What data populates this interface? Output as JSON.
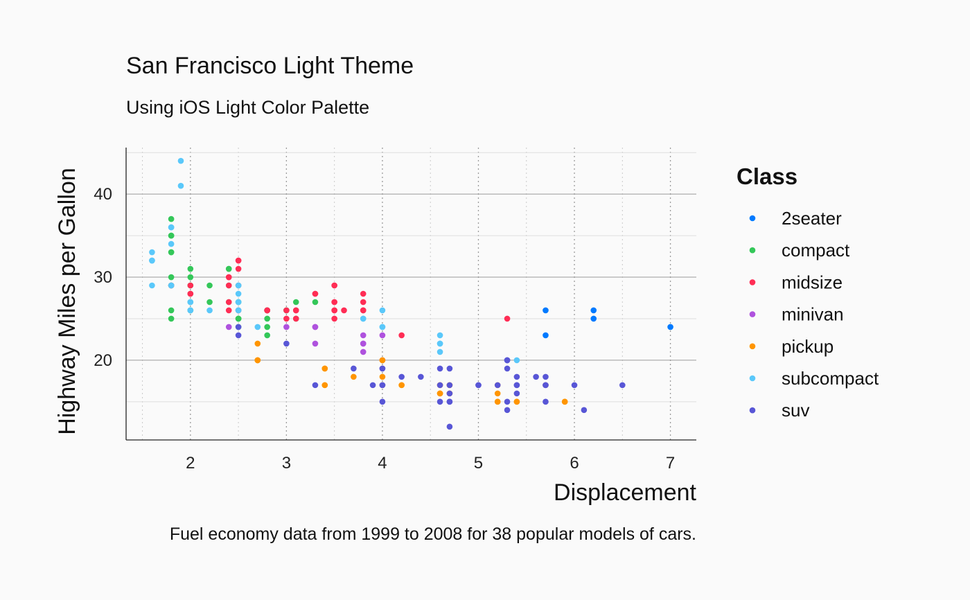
{
  "chart_data": {
    "type": "scatter",
    "title": "San Francisco Light Theme",
    "subtitle": "Using iOS Light Color Palette",
    "caption": "Fuel economy data from 1999 to 2008 for 38 popular models of cars.",
    "xlabel": "Displacement",
    "ylabel": "Highway Miles per Gallon",
    "xlim": [
      1.33,
      7.27
    ],
    "ylim": [
      10.4,
      45.6
    ],
    "x_ticks": [
      2,
      3,
      4,
      5,
      6,
      7
    ],
    "y_ticks": [
      20,
      30,
      40
    ],
    "grid": true,
    "legend": {
      "title": "Class",
      "position": "right"
    },
    "series": [
      {
        "name": "2seater",
        "color": "#007aff",
        "points": [
          [
            5.7,
            26
          ],
          [
            5.7,
            23
          ],
          [
            6.2,
            26
          ],
          [
            6.2,
            25
          ],
          [
            7.0,
            24
          ]
        ]
      },
      {
        "name": "compact",
        "color": "#34c759",
        "points": [
          [
            1.8,
            29
          ],
          [
            1.8,
            29
          ],
          [
            2.0,
            31
          ],
          [
            2.0,
            30
          ],
          [
            2.8,
            26
          ],
          [
            2.8,
            26
          ],
          [
            3.1,
            27
          ],
          [
            1.8,
            26
          ],
          [
            1.8,
            25
          ],
          [
            2.0,
            28
          ],
          [
            2.0,
            29
          ],
          [
            2.8,
            25
          ],
          [
            2.8,
            24
          ],
          [
            3.1,
            25
          ],
          [
            1.8,
            33
          ],
          [
            1.8,
            35
          ],
          [
            1.8,
            37
          ],
          [
            1.8,
            35
          ],
          [
            1.8,
            29
          ],
          [
            2.2,
            27
          ],
          [
            2.2,
            29
          ],
          [
            2.4,
            31
          ],
          [
            2.4,
            31
          ],
          [
            3.0,
            26
          ],
          [
            3.0,
            26
          ],
          [
            3.3,
            27
          ],
          [
            2.0,
            29
          ],
          [
            2.0,
            26
          ],
          [
            2.5,
            27
          ],
          [
            2.5,
            25
          ],
          [
            2.5,
            25
          ],
          [
            2.5,
            29
          ],
          [
            2.8,
            23
          ],
          [
            2.5,
            27
          ],
          [
            2.5,
            24
          ],
          [
            2.4,
            29
          ],
          [
            2.4,
            27
          ],
          [
            2.8,
            26
          ],
          [
            2.0,
            27
          ],
          [
            2.0,
            26
          ],
          [
            1.8,
            30
          ],
          [
            1.8,
            33
          ],
          [
            2.5,
            25
          ]
        ]
      },
      {
        "name": "midsize",
        "color": "#ff2d55",
        "points": [
          [
            2.8,
            26
          ],
          [
            3.1,
            26
          ],
          [
            4.2,
            23
          ],
          [
            2.4,
            27
          ],
          [
            2.4,
            30
          ],
          [
            3.1,
            26
          ],
          [
            3.5,
            29
          ],
          [
            3.6,
            26
          ],
          [
            2.5,
            32
          ],
          [
            2.5,
            31
          ],
          [
            3.3,
            28
          ],
          [
            3.5,
            29
          ],
          [
            3.5,
            27
          ],
          [
            3.5,
            26
          ],
          [
            3.8,
            28
          ],
          [
            3.8,
            27
          ],
          [
            3.8,
            26
          ],
          [
            5.3,
            25
          ],
          [
            2.4,
            30
          ],
          [
            2.4,
            29
          ],
          [
            2.5,
            32
          ],
          [
            2.5,
            29
          ],
          [
            3.5,
            26
          ],
          [
            3.5,
            25
          ],
          [
            2.0,
            28
          ],
          [
            2.0,
            29
          ],
          [
            2.5,
            26
          ],
          [
            2.8,
            26
          ],
          [
            2.4,
            26
          ],
          [
            3.0,
            26
          ],
          [
            3.0,
            25
          ],
          [
            3.1,
            25
          ],
          [
            3.3,
            28
          ],
          [
            1.8,
            29
          ],
          [
            1.8,
            29
          ],
          [
            2.0,
            28
          ],
          [
            2.5,
            26
          ],
          [
            3.5,
            27
          ],
          [
            3.8,
            26
          ],
          [
            2.8,
            26
          ]
        ]
      },
      {
        "name": "minivan",
        "color": "#af52de",
        "points": [
          [
            2.4,
            24
          ],
          [
            3.0,
            24
          ],
          [
            3.3,
            22
          ],
          [
            3.3,
            24
          ],
          [
            3.8,
            23
          ],
          [
            3.8,
            22
          ],
          [
            3.8,
            21
          ],
          [
            4.0,
            23
          ],
          [
            3.3,
            24
          ],
          [
            3.8,
            22
          ],
          [
            4.0,
            20
          ]
        ]
      },
      {
        "name": "pickup",
        "color": "#ff9500",
        "points": [
          [
            2.7,
            20
          ],
          [
            2.7,
            20
          ],
          [
            2.7,
            22
          ],
          [
            3.4,
            17
          ],
          [
            3.4,
            19
          ],
          [
            3.7,
            18
          ],
          [
            4.0,
            20
          ],
          [
            4.0,
            18
          ],
          [
            4.2,
            17
          ],
          [
            4.6,
            16
          ],
          [
            4.6,
            17
          ],
          [
            4.6,
            16
          ],
          [
            4.7,
            17
          ],
          [
            4.7,
            16
          ],
          [
            5.2,
            15
          ],
          [
            5.2,
            16
          ],
          [
            5.2,
            17
          ],
          [
            5.4,
            15
          ],
          [
            5.7,
            17
          ],
          [
            5.9,
            15
          ],
          [
            4.6,
            16
          ],
          [
            3.4,
            17
          ],
          [
            4.0,
            20
          ],
          [
            4.2,
            17
          ],
          [
            4.7,
            17
          ],
          [
            5.2,
            15
          ],
          [
            5.4,
            15
          ],
          [
            5.9,
            15
          ],
          [
            4.0,
            17
          ],
          [
            4.6,
            17
          ],
          [
            4.7,
            16
          ],
          [
            2.7,
            20
          ],
          [
            3.4,
            19
          ]
        ]
      },
      {
        "name": "subcompact",
        "color": "#5ac8fa",
        "points": [
          [
            1.6,
            33
          ],
          [
            1.6,
            32
          ],
          [
            1.6,
            32
          ],
          [
            1.6,
            29
          ],
          [
            1.8,
            34
          ],
          [
            1.8,
            36
          ],
          [
            1.8,
            36
          ],
          [
            1.8,
            29
          ],
          [
            1.9,
            44
          ],
          [
            1.9,
            41
          ],
          [
            2.0,
            26
          ],
          [
            2.0,
            27
          ],
          [
            2.2,
            26
          ],
          [
            2.5,
            28
          ],
          [
            2.5,
            27
          ],
          [
            2.5,
            29
          ],
          [
            2.5,
            26
          ],
          [
            2.7,
            24
          ],
          [
            3.8,
            25
          ],
          [
            4.0,
            24
          ],
          [
            4.0,
            26
          ],
          [
            4.6,
            21
          ],
          [
            4.6,
            22
          ],
          [
            4.6,
            23
          ],
          [
            5.4,
            20
          ],
          [
            2.0,
            26
          ],
          [
            2.5,
            29
          ],
          [
            2.5,
            26
          ],
          [
            2.0,
            27
          ],
          [
            3.8,
            25
          ],
          [
            4.6,
            22
          ],
          [
            1.8,
            29
          ],
          [
            2.5,
            27
          ],
          [
            4.0,
            24
          ],
          [
            1.6,
            32
          ]
        ]
      },
      {
        "name": "suv",
        "color": "#5856d6",
        "points": [
          [
            5.3,
            20
          ],
          [
            5.3,
            15
          ],
          [
            5.3,
            20
          ],
          [
            5.7,
            17
          ],
          [
            6.0,
            17
          ],
          [
            5.3,
            19
          ],
          [
            5.3,
            20
          ],
          [
            5.7,
            17
          ],
          [
            6.5,
            17
          ],
          [
            3.7,
            19
          ],
          [
            4.7,
            19
          ],
          [
            4.7,
            17
          ],
          [
            5.2,
            17
          ],
          [
            4.7,
            15
          ],
          [
            4.7,
            12
          ],
          [
            5.7,
            15
          ],
          [
            6.1,
            14
          ],
          [
            4.0,
            19
          ],
          [
            4.6,
            17
          ],
          [
            4.0,
            17
          ],
          [
            4.0,
            15
          ],
          [
            3.9,
            17
          ],
          [
            4.6,
            19
          ],
          [
            5.0,
            17
          ],
          [
            5.4,
            17
          ],
          [
            5.4,
            16
          ],
          [
            5.4,
            18
          ],
          [
            4.4,
            18
          ],
          [
            5.6,
            18
          ],
          [
            3.0,
            22
          ],
          [
            2.5,
            23
          ],
          [
            2.5,
            24
          ],
          [
            4.0,
            19
          ],
          [
            4.0,
            17
          ],
          [
            4.2,
            18
          ],
          [
            4.7,
            15
          ],
          [
            5.7,
            18
          ],
          [
            3.3,
            17
          ],
          [
            4.7,
            16
          ],
          [
            5.3,
            14
          ],
          [
            5.0,
            17
          ],
          [
            4.6,
            15
          ],
          [
            5.4,
            17
          ]
        ]
      }
    ]
  }
}
